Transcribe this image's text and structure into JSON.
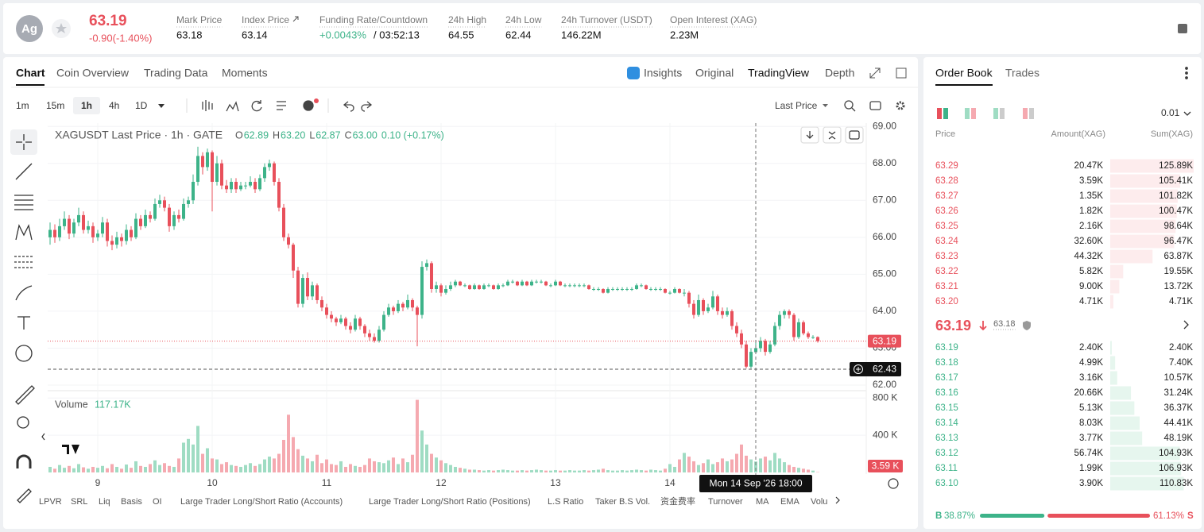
{
  "header": {
    "symbol": "Ag",
    "price": "63.19",
    "change": "-0.90(-1.40%)",
    "stats": [
      {
        "label": "Mark Price",
        "value": "63.18"
      },
      {
        "label": "Index Price",
        "value": "63.14"
      },
      {
        "label": "Funding Rate/Countdown",
        "value": "+0.0043%",
        "countdown": "/ 03:52:13"
      },
      {
        "label": "24h High",
        "value": "64.55"
      },
      {
        "label": "24h Low",
        "value": "62.44"
      },
      {
        "label": "24h Turnover (USDT)",
        "value": "146.22M"
      },
      {
        "label": "Open Interest (XAG)",
        "value": "2.23M"
      }
    ]
  },
  "nav": {
    "tabs": [
      "Chart",
      "Coin Overview",
      "Trading Data",
      "Moments"
    ],
    "views": [
      "Insights",
      "Original",
      "TradingView",
      "Depth"
    ],
    "intervals": [
      "1m",
      "15m",
      "1h",
      "4h",
      "1D"
    ],
    "price_type": "Last Price"
  },
  "chart_data": {
    "type": "candlestick",
    "legend": {
      "title": "XAGUSDT Last Price · 1h · GATE",
      "o_tag": "O",
      "o": "62.89",
      "h_tag": "H",
      "h": "63.20",
      "l_tag": "L",
      "l": "62.87",
      "c_tag": "C",
      "c": "63.00",
      "change": "0.10 (+0.17%)"
    },
    "up_color": "#3db389",
    "down_color": "#e8505b",
    "up_volume_color": "#9fdcc3",
    "down_volume_color": "#f5a9b0",
    "xlim": [
      -0.5,
      171.17
    ],
    "xticks": [
      {
        "value": 10,
        "label": "9"
      },
      {
        "value": 34,
        "label": "10"
      },
      {
        "value": 58,
        "label": "11"
      },
      {
        "value": 82,
        "label": "12"
      },
      {
        "value": 106,
        "label": "13"
      },
      {
        "value": 130,
        "label": "14"
      }
    ],
    "ylim": [
      61.85,
      69.09
    ],
    "yticks": [
      {
        "value": 62,
        "label": "62.00"
      },
      {
        "value": 63,
        "label": "63.00"
      },
      {
        "value": 64,
        "label": "64.00"
      },
      {
        "value": 65,
        "label": "65.00"
      },
      {
        "value": 66,
        "label": "66.00"
      },
      {
        "value": 67,
        "label": "67.00"
      },
      {
        "value": 68,
        "label": "68.00"
      },
      {
        "value": 69,
        "label": "69.00"
      }
    ],
    "vlim": [
      0,
      870
    ],
    "vticks": [
      {
        "value": 400,
        "label": "400 K"
      },
      {
        "value": 800,
        "label": "800 K"
      }
    ],
    "grid": true,
    "last_price": 63.19,
    "crosshair": {
      "index": 148,
      "label": "Mon 14 Sep '26 18:00",
      "price": 62.43
    },
    "volume_legend": {
      "name": "Volume",
      "value": "117.17K"
    },
    "last_volume": {
      "value": 3.59,
      "label": "3.59 K"
    },
    "ohlc": [
      [
        66.0,
        66.4,
        65.8,
        66.2
      ],
      [
        66.2,
        66.35,
        65.85,
        66.0
      ],
      [
        66.0,
        66.5,
        65.9,
        66.3
      ],
      [
        66.3,
        66.7,
        66.2,
        66.5
      ],
      [
        66.5,
        66.6,
        65.95,
        66.1
      ],
      [
        66.1,
        66.5,
        66.0,
        66.4
      ],
      [
        66.4,
        66.8,
        66.3,
        66.6
      ],
      [
        66.6,
        66.7,
        66.1,
        66.2
      ],
      [
        66.2,
        66.45,
        66.1,
        66.3
      ],
      [
        66.3,
        66.4,
        65.85,
        66.0
      ],
      [
        66.0,
        66.2,
        65.9,
        66.1
      ],
      [
        66.1,
        66.55,
        66.0,
        66.4
      ],
      [
        66.4,
        66.5,
        65.75,
        65.9
      ],
      [
        65.9,
        66.05,
        65.65,
        65.8
      ],
      [
        65.8,
        66.15,
        65.7,
        66.0
      ],
      [
        66.0,
        66.1,
        65.75,
        65.9
      ],
      [
        65.9,
        66.35,
        65.8,
        66.2
      ],
      [
        66.2,
        66.3,
        65.9,
        66.0
      ],
      [
        66.0,
        66.65,
        65.95,
        66.5
      ],
      [
        66.5,
        66.6,
        66.2,
        66.3
      ],
      [
        66.3,
        66.75,
        66.25,
        66.6
      ],
      [
        66.6,
        66.7,
        66.4,
        66.5
      ],
      [
        66.5,
        67.05,
        66.45,
        66.9
      ],
      [
        66.9,
        67.15,
        66.8,
        67.0
      ],
      [
        67.0,
        67.1,
        66.7,
        66.8
      ],
      [
        66.8,
        66.9,
        66.15,
        66.3
      ],
      [
        66.3,
        66.7,
        66.2,
        66.6
      ],
      [
        66.6,
        66.75,
        66.4,
        66.5
      ],
      [
        66.5,
        67.05,
        66.45,
        66.9
      ],
      [
        66.9,
        67.1,
        66.8,
        67.0
      ],
      [
        67.0,
        67.7,
        66.9,
        67.5
      ],
      [
        67.5,
        68.45,
        67.4,
        68.2
      ],
      [
        68.2,
        68.3,
        67.7,
        67.9
      ],
      [
        67.9,
        68.4,
        67.8,
        68.3
      ],
      [
        68.3,
        68.35,
        66.7,
        67.5
      ],
      [
        67.5,
        68.2,
        67.4,
        68.0
      ],
      [
        68.0,
        68.1,
        67.3,
        67.4
      ],
      [
        67.4,
        67.55,
        67.2,
        67.3
      ],
      [
        67.3,
        67.6,
        67.2,
        67.5
      ],
      [
        67.5,
        67.6,
        67.2,
        67.3
      ],
      [
        67.3,
        67.5,
        67.25,
        67.4
      ],
      [
        67.4,
        67.5,
        67.3,
        67.4
      ],
      [
        67.4,
        67.65,
        67.35,
        67.5
      ],
      [
        67.5,
        67.6,
        67.2,
        67.3
      ],
      [
        67.3,
        67.7,
        67.25,
        67.6
      ],
      [
        67.6,
        68.0,
        67.5,
        67.9
      ],
      [
        67.9,
        68.1,
        67.8,
        68.0
      ],
      [
        68.0,
        68.05,
        67.4,
        67.5
      ],
      [
        67.5,
        67.6,
        66.7,
        66.8
      ],
      [
        66.8,
        66.9,
        65.9,
        66.0
      ],
      [
        66.0,
        66.1,
        65.7,
        65.8
      ],
      [
        65.8,
        65.85,
        64.9,
        65.1
      ],
      [
        65.1,
        65.2,
        64.1,
        64.2
      ],
      [
        64.2,
        65.0,
        64.1,
        64.9
      ],
      [
        64.9,
        65.05,
        64.3,
        64.4
      ],
      [
        64.4,
        64.8,
        64.3,
        64.7
      ],
      [
        64.7,
        64.75,
        64.2,
        64.3
      ],
      [
        64.3,
        64.4,
        64.0,
        64.1
      ],
      [
        64.1,
        64.2,
        63.8,
        63.9
      ],
      [
        63.9,
        64.0,
        63.7,
        63.8
      ],
      [
        63.8,
        63.85,
        63.6,
        63.7
      ],
      [
        63.7,
        63.9,
        63.65,
        63.8
      ],
      [
        63.8,
        63.85,
        63.5,
        63.6
      ],
      [
        63.6,
        63.7,
        63.4,
        63.5
      ],
      [
        63.5,
        63.9,
        63.45,
        63.8
      ],
      [
        63.8,
        63.85,
        63.5,
        63.6
      ],
      [
        63.6,
        63.65,
        63.3,
        63.4
      ],
      [
        63.4,
        63.5,
        63.2,
        63.3
      ],
      [
        63.3,
        63.4,
        63.15,
        63.2
      ],
      [
        63.2,
        63.6,
        63.15,
        63.5
      ],
      [
        63.5,
        64.0,
        63.45,
        63.9
      ],
      [
        63.9,
        64.2,
        63.85,
        64.1
      ],
      [
        64.1,
        64.15,
        63.9,
        64.0
      ],
      [
        64.0,
        64.3,
        63.95,
        64.2
      ],
      [
        64.2,
        64.25,
        64.0,
        64.1
      ],
      [
        64.1,
        64.45,
        64.05,
        64.3
      ],
      [
        64.3,
        64.35,
        64.0,
        64.1
      ],
      [
        64.1,
        64.15,
        63.05,
        63.9
      ],
      [
        63.9,
        65.35,
        63.8,
        65.2
      ],
      [
        65.2,
        65.4,
        65.1,
        65.3
      ],
      [
        65.3,
        65.35,
        64.5,
        64.6
      ],
      [
        64.6,
        64.8,
        64.5,
        64.7
      ],
      [
        64.7,
        64.75,
        64.4,
        64.5
      ],
      [
        64.5,
        64.7,
        64.45,
        64.6
      ],
      [
        64.6,
        64.8,
        64.55,
        64.7
      ],
      [
        64.7,
        64.85,
        64.65,
        64.8
      ],
      [
        64.8,
        64.82,
        64.68,
        64.7
      ],
      [
        64.7,
        64.75,
        64.65,
        64.7
      ],
      [
        64.7,
        64.72,
        64.58,
        64.6
      ],
      [
        64.6,
        64.75,
        64.58,
        64.7
      ],
      [
        64.7,
        64.72,
        64.58,
        64.6
      ],
      [
        64.6,
        64.75,
        64.58,
        64.7
      ],
      [
        64.7,
        64.75,
        64.65,
        64.7
      ],
      [
        64.7,
        64.72,
        64.58,
        64.6
      ],
      [
        64.6,
        64.75,
        64.58,
        64.7
      ],
      [
        64.7,
        64.75,
        64.65,
        64.7
      ],
      [
        64.7,
        64.85,
        64.68,
        64.8
      ],
      [
        64.8,
        64.85,
        64.75,
        64.8
      ],
      [
        64.8,
        64.82,
        64.68,
        64.7
      ],
      [
        64.7,
        64.85,
        64.68,
        64.8
      ],
      [
        64.8,
        64.82,
        64.68,
        64.7
      ],
      [
        64.7,
        64.85,
        64.68,
        64.8
      ],
      [
        64.8,
        64.85,
        64.75,
        64.8
      ],
      [
        64.8,
        64.85,
        64.75,
        64.8
      ],
      [
        64.8,
        64.82,
        64.68,
        64.7
      ],
      [
        64.7,
        64.75,
        64.65,
        64.7
      ],
      [
        64.7,
        64.85,
        64.68,
        64.8
      ],
      [
        64.8,
        64.82,
        64.68,
        64.7
      ],
      [
        64.7,
        64.75,
        64.65,
        64.7
      ],
      [
        64.7,
        64.75,
        64.65,
        64.7
      ],
      [
        64.7,
        64.75,
        64.65,
        64.7
      ],
      [
        64.7,
        64.75,
        64.65,
        64.7
      ],
      [
        64.7,
        64.75,
        64.65,
        64.7
      ],
      [
        64.7,
        64.72,
        64.58,
        64.6
      ],
      [
        64.6,
        64.65,
        64.55,
        64.6
      ],
      [
        64.6,
        64.65,
        64.55,
        64.6
      ],
      [
        64.6,
        64.62,
        64.48,
        64.5
      ],
      [
        64.5,
        64.65,
        64.48,
        64.6
      ],
      [
        64.6,
        64.65,
        64.55,
        64.6
      ],
      [
        64.6,
        64.65,
        64.55,
        64.6
      ],
      [
        64.6,
        64.65,
        64.55,
        64.6
      ],
      [
        64.6,
        64.65,
        64.55,
        64.6
      ],
      [
        64.6,
        64.65,
        64.55,
        64.6
      ],
      [
        64.6,
        64.75,
        64.58,
        64.7
      ],
      [
        64.7,
        64.75,
        64.65,
        64.7
      ],
      [
        64.7,
        64.72,
        64.58,
        64.6
      ],
      [
        64.6,
        64.65,
        64.55,
        64.6
      ],
      [
        64.6,
        64.65,
        64.55,
        64.6
      ],
      [
        64.6,
        64.65,
        64.55,
        64.6
      ],
      [
        64.6,
        64.62,
        64.48,
        64.5
      ],
      [
        64.5,
        64.55,
        64.45,
        64.5
      ],
      [
        64.5,
        64.65,
        64.48,
        64.6
      ],
      [
        64.6,
        64.62,
        64.48,
        64.5
      ],
      [
        64.5,
        64.6,
        64.4,
        64.5
      ],
      [
        64.5,
        64.55,
        64.1,
        64.2
      ],
      [
        64.2,
        64.3,
        63.8,
        63.9
      ],
      [
        63.9,
        64.45,
        63.85,
        64.3
      ],
      [
        64.3,
        64.35,
        63.9,
        64.0
      ],
      [
        64.0,
        64.2,
        63.95,
        64.1
      ],
      [
        64.1,
        64.55,
        64.05,
        64.4
      ],
      [
        64.4,
        64.45,
        63.9,
        64.0
      ],
      [
        64.0,
        64.1,
        63.8,
        63.9
      ],
      [
        63.9,
        64.1,
        63.85,
        64.0
      ],
      [
        64.0,
        64.05,
        63.5,
        63.6
      ],
      [
        63.6,
        63.7,
        63.3,
        63.4
      ],
      [
        63.4,
        63.5,
        63.0,
        63.1
      ],
      [
        63.1,
        63.2,
        62.45,
        62.5
      ],
      [
        62.5,
        63.0,
        62.45,
        62.9
      ],
      [
        62.89,
        63.2,
        62.87,
        63.0
      ],
      [
        63.0,
        63.3,
        62.9,
        63.2
      ],
      [
        63.2,
        63.25,
        62.8,
        62.9
      ],
      [
        62.9,
        63.2,
        62.85,
        63.1
      ],
      [
        63.1,
        63.7,
        63.05,
        63.6
      ],
      [
        63.6,
        64.0,
        63.5,
        63.9
      ],
      [
        63.9,
        64.05,
        63.8,
        64.0
      ],
      [
        64.0,
        64.05,
        63.8,
        63.9
      ],
      [
        63.9,
        63.95,
        63.2,
        63.3
      ],
      [
        63.3,
        63.8,
        63.25,
        63.7
      ],
      [
        63.7,
        63.75,
        63.35,
        63.4
      ],
      [
        63.4,
        63.45,
        63.25,
        63.3
      ],
      [
        63.3,
        63.35,
        63.25,
        63.3
      ],
      [
        63.3,
        63.32,
        63.15,
        63.19
      ]
    ],
    "volume": [
      60,
      40,
      80,
      50,
      70,
      45,
      90,
      55,
      40,
      60,
      50,
      70,
      45,
      90,
      60,
      40,
      85,
      50,
      120,
      70,
      60,
      90,
      130,
      80,
      100,
      70,
      60,
      150,
      320,
      360,
      300,
      500,
      200,
      260,
      150,
      140,
      90,
      110,
      80,
      70,
      60,
      80,
      100,
      70,
      90,
      140,
      170,
      150,
      200,
      350,
      620,
      380,
      250,
      180,
      150,
      120,
      190,
      100,
      140,
      90,
      80,
      120,
      60,
      90,
      70,
      60,
      80,
      150,
      120,
      110,
      100,
      130,
      160,
      90,
      150,
      110,
      190,
      780,
      450,
      300,
      200,
      160,
      130,
      100,
      80,
      60,
      50,
      40,
      30,
      30,
      25,
      20,
      25,
      20,
      25,
      30,
      25,
      20,
      20,
      25,
      20,
      25,
      30,
      25,
      20,
      20,
      25,
      20,
      20,
      25,
      20,
      20,
      25,
      20,
      25,
      30,
      40,
      25,
      20,
      20,
      25,
      20,
      25,
      30,
      25,
      20,
      30,
      25,
      20,
      40,
      90,
      60,
      140,
      210,
      170,
      120,
      80,
      100,
      140,
      90,
      110,
      150,
      120,
      140,
      200,
      300,
      180,
      140,
      117.17,
      150,
      170,
      130,
      210,
      150,
      110,
      80,
      60,
      50,
      40,
      30,
      20,
      3.59
    ]
  },
  "indicators": [
    "LPVR",
    "SRL",
    "Liq",
    "Basis",
    "OI",
    "Large Trader Long/Short Ratio (Accounts)",
    "Large Trader Long/Short Ratio (Positions)",
    "L.S Ratio",
    "Taker B.S Vol.",
    "资金费率",
    "Turnover",
    "MA",
    "EMA",
    "Volu"
  ],
  "order_book": {
    "tabs": [
      "Order Book",
      "Trades"
    ],
    "precision": "0.01",
    "columns": [
      "Price",
      "Amount(XAG)",
      "Sum(XAG)"
    ],
    "asks": [
      [
        "63.29",
        "20.47K",
        "125.89K"
      ],
      [
        "63.28",
        "3.59K",
        "105.41K"
      ],
      [
        "63.27",
        "1.35K",
        "101.82K"
      ],
      [
        "63.26",
        "1.82K",
        "100.47K"
      ],
      [
        "63.25",
        "2.16K",
        "98.64K"
      ],
      [
        "63.24",
        "32.60K",
        "96.47K"
      ],
      [
        "63.23",
        "44.32K",
        "63.87K"
      ],
      [
        "63.22",
        "5.82K",
        "19.55K"
      ],
      [
        "63.21",
        "9.00K",
        "13.72K"
      ],
      [
        "63.20",
        "4.71K",
        "4.71K"
      ]
    ],
    "mid": {
      "price": "63.19",
      "mark": "63.18"
    },
    "bids": [
      [
        "63.19",
        "2.40K",
        "2.40K"
      ],
      [
        "63.18",
        "4.99K",
        "7.40K"
      ],
      [
        "63.17",
        "3.16K",
        "10.57K"
      ],
      [
        "63.16",
        "20.66K",
        "31.24K"
      ],
      [
        "63.15",
        "5.13K",
        "36.37K"
      ],
      [
        "63.14",
        "8.03K",
        "44.41K"
      ],
      [
        "63.13",
        "3.77K",
        "48.19K"
      ],
      [
        "63.12",
        "56.74K",
        "104.93K"
      ],
      [
        "63.11",
        "1.99K",
        "106.93K"
      ],
      [
        "63.10",
        "3.90K",
        "110.83K"
      ]
    ],
    "ratio": {
      "buy_tag": "B",
      "buy": {
        "value": 38.87,
        "label": "38.87%"
      },
      "sell": {
        "value": 61.13,
        "label": "61.13%"
      },
      "sell_tag": "S"
    }
  }
}
